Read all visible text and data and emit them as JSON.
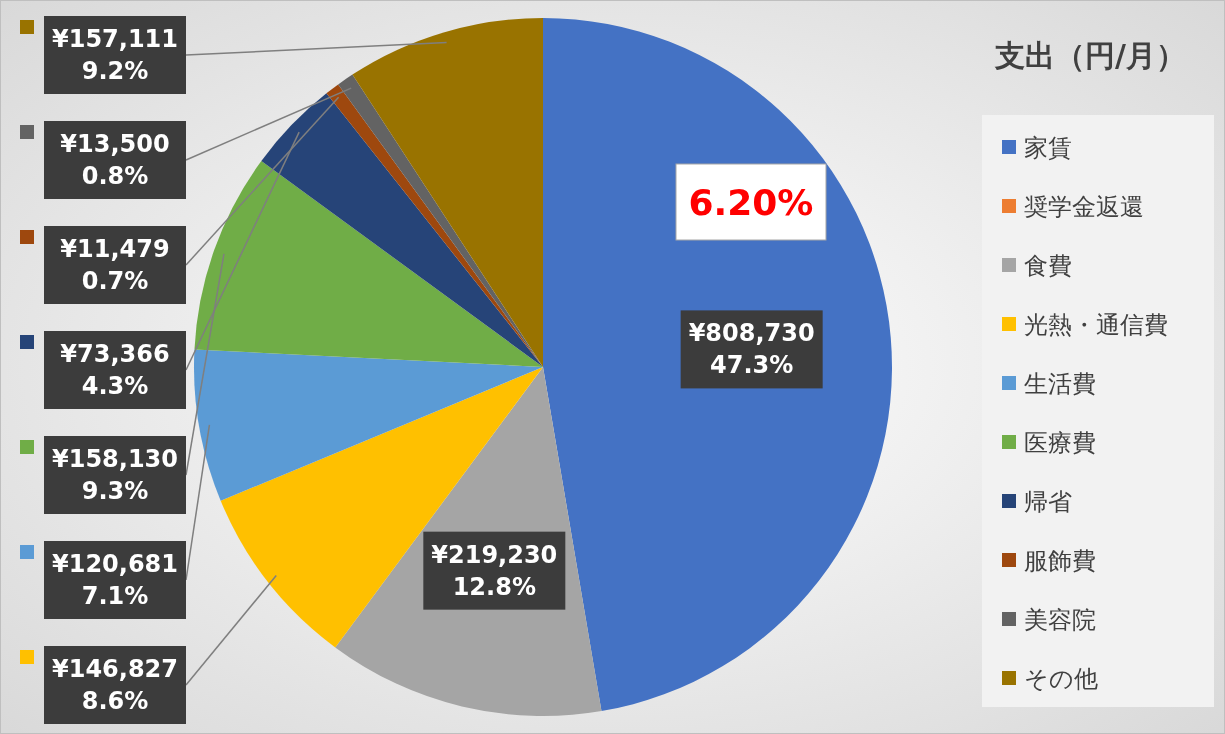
{
  "chart_data": {
    "type": "pie",
    "title": "支出（円/月）",
    "categories": [
      "家賃",
      "奨学金返還",
      "食費",
      "光熱・通信費",
      "生活費",
      "医療費",
      "帰省",
      "服飾費",
      "美容院",
      "その他"
    ],
    "values": [
      808730,
      null,
      219230,
      146827,
      120681,
      158130,
      73366,
      11479,
      13500,
      157111
    ],
    "colors": [
      "#4472c4",
      "#ed7d31",
      "#a5a5a5",
      "#ffc000",
      "#5b9bd5",
      "#70ad47",
      "#264478",
      "#9e480e",
      "#636363",
      "#997300"
    ],
    "value_labels": [
      "¥808,730\n47.3%",
      null,
      "¥219,230\n12.8%",
      "¥146,827\n8.6%",
      "¥120,681\n7.1%",
      "¥158,130\n9.3%",
      "¥73,366\n4.3%",
      "¥11,479\n0.7%",
      "¥13,500\n0.8%",
      "¥157,111\n9.2%"
    ],
    "annotations": [
      "6.20%"
    ],
    "legend": "right"
  }
}
